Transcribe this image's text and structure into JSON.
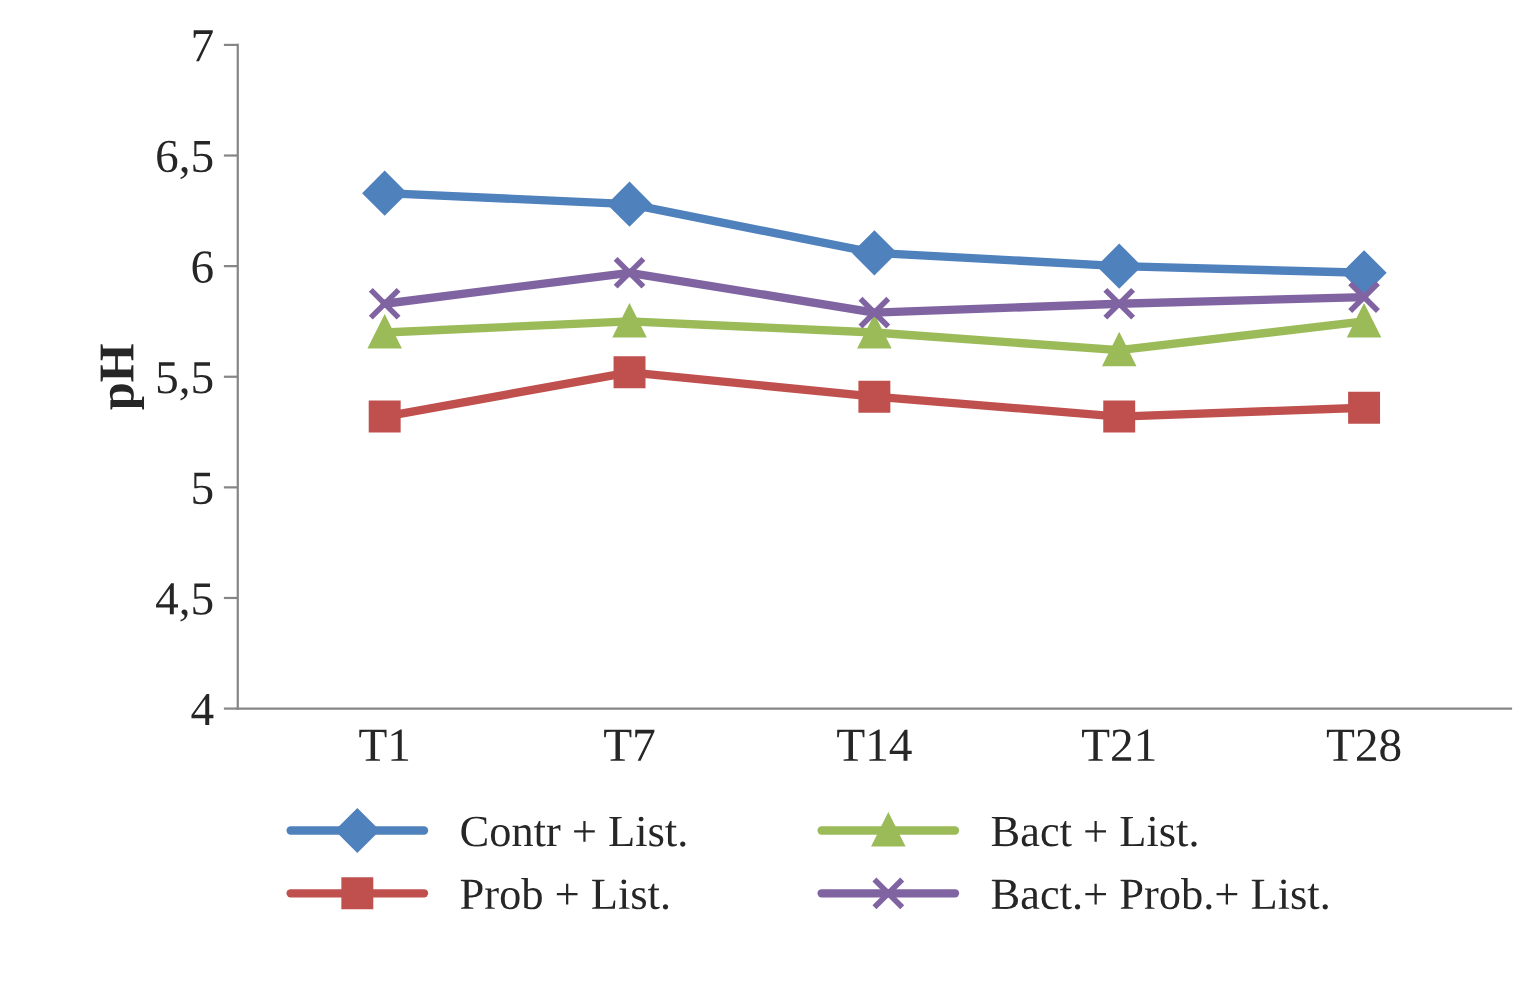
{
  "chart_data": {
    "type": "line",
    "ylabel": "pH",
    "categories": [
      "T1",
      "T7",
      "T14",
      "T21",
      "T28"
    ],
    "series": [
      {
        "name": "Contr + List.",
        "color": "#4f81bd",
        "marker": "diamond",
        "values": [
          6.33,
          6.28,
          6.06,
          6.0,
          5.97
        ]
      },
      {
        "name": "Prob + List.",
        "color": "#c0504d",
        "marker": "square",
        "values": [
          5.32,
          5.52,
          5.41,
          5.32,
          5.36
        ]
      },
      {
        "name": "Bact + List.",
        "color": "#9bbb59",
        "marker": "triangle",
        "values": [
          5.7,
          5.75,
          5.7,
          5.62,
          5.75
        ]
      },
      {
        "name": "Bact.+ Prob.+ List.",
        "color": "#8064a2",
        "marker": "cross",
        "values": [
          5.83,
          5.97,
          5.79,
          5.83,
          5.86
        ]
      }
    ],
    "ylim": [
      4,
      7
    ],
    "yticks": [
      4,
      {
        "value": 4.5,
        "label": "4,5"
      },
      5,
      {
        "value": 5.5,
        "label": "5,5"
      },
      6,
      {
        "value": 6.5,
        "label": "6,5"
      },
      7
    ],
    "grid": false,
    "legend": "bottom"
  }
}
